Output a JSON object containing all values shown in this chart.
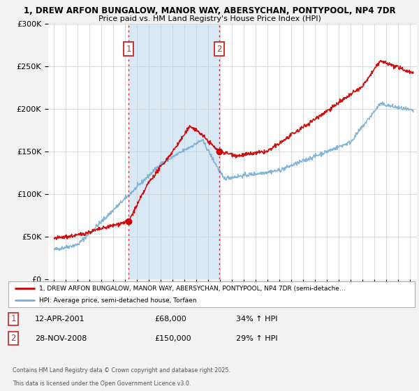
{
  "title_line1": "1, DREW ARFON BUNGALOW, MANOR WAY, ABERSYCHAN, PONTYPOOL, NP4 7DR",
  "title_line2": "Price paid vs. HM Land Registry's House Price Index (HPI)",
  "ylim": [
    0,
    300000
  ],
  "yticks": [
    0,
    50000,
    100000,
    150000,
    200000,
    250000,
    300000
  ],
  "ytick_labels": [
    "£0",
    "£50K",
    "£100K",
    "£150K",
    "£200K",
    "£250K",
    "£300K"
  ],
  "fig_bg": "#f0f0f0",
  "plot_bg": "#ffffff",
  "red_line_color": "#cc0000",
  "blue_line_color": "#7ab0d4",
  "transaction1_year": 2001.28,
  "transaction1_price": 68000,
  "transaction2_year": 2008.91,
  "transaction2_price": 150000,
  "span_color": "#d8e8f4",
  "vline_color": "#cc3333",
  "legend_red": "1, DREW ARFON BUNGALOW, MANOR WAY, ABERSYCHAN, PONTYPOOL, NP4 7DR (semi-detache…",
  "legend_blue": "HPI: Average price, semi-detached house, Torfaen",
  "t1_date": "12-APR-2001",
  "t1_price_str": "£68,000",
  "t1_pct": "34% ↑ HPI",
  "t2_date": "28-NOV-2008",
  "t2_price_str": "£150,000",
  "t2_pct": "29% ↑ HPI",
  "footer1": "Contains HM Land Registry data © Crown copyright and database right 2025.",
  "footer2": "This data is licensed under the Open Government Licence v3.0."
}
